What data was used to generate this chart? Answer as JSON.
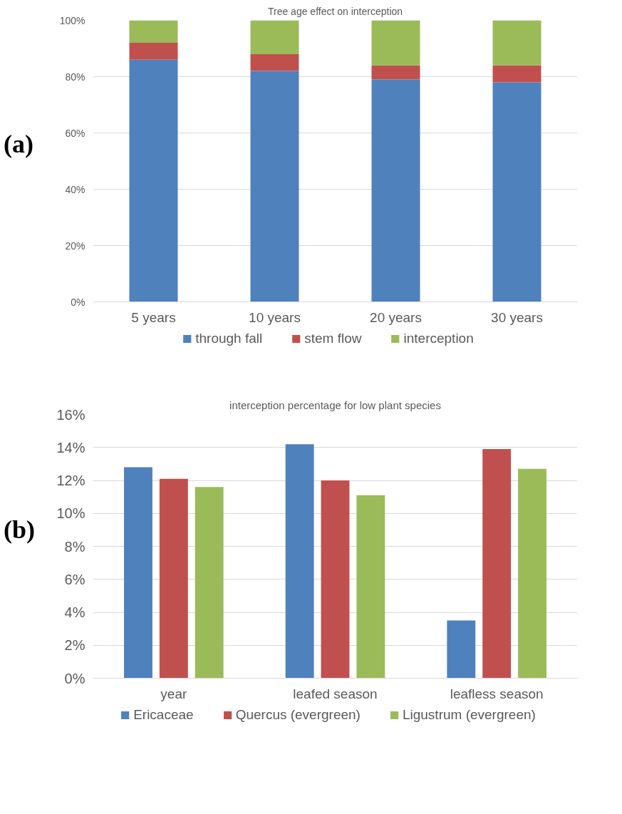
{
  "chart_data": [
    {
      "type": "bar",
      "stacked": true,
      "title": "Tree age effect on interception",
      "annotations": [
        "(a)"
      ],
      "categories": [
        "5 years",
        "10 years",
        "20 years",
        "30 years"
      ],
      "series": [
        {
          "name": "through fall",
          "color": "#4f81bd",
          "values": [
            86,
            82,
            79,
            78
          ]
        },
        {
          "name": "stem flow",
          "color": "#c0504d",
          "values": [
            6,
            6,
            5,
            6
          ]
        },
        {
          "name": "interception",
          "color": "#9bbb59",
          "values": [
            8,
            12,
            16,
            16
          ]
        }
      ],
      "ylim": [
        0,
        100
      ],
      "yticks": [
        {
          "value": 0,
          "label": "0%"
        },
        {
          "value": 20,
          "label": "20%"
        },
        {
          "value": 40,
          "label": "40%"
        },
        {
          "value": 60,
          "label": "60%"
        },
        {
          "value": 80,
          "label": "80%"
        },
        {
          "value": 100,
          "label": "100%"
        }
      ],
      "grid": "y",
      "legend": "bottom"
    },
    {
      "type": "bar",
      "title": "interception percentage for low plant species",
      "annotations": [
        "(b)"
      ],
      "categories": [
        "year",
        "leafed season",
        "leafless season"
      ],
      "series": [
        {
          "name": "Ericaceae",
          "color": "#4f81bd",
          "values": [
            12.8,
            14.2,
            3.5
          ]
        },
        {
          "name": "Quercus (evergreen)",
          "color": "#c0504d",
          "values": [
            12.1,
            12.0,
            13.9
          ]
        },
        {
          "name": "Ligustrum (evergreen)",
          "color": "#9bbb59",
          "values": [
            11.6,
            11.1,
            12.7
          ]
        }
      ],
      "ylim": [
        0,
        16
      ],
      "yticks": [
        {
          "value": 0,
          "label": "0%"
        },
        {
          "value": 2,
          "label": "2%"
        },
        {
          "value": 4,
          "label": "4%"
        },
        {
          "value": 6,
          "label": "6%"
        },
        {
          "value": 8,
          "label": "8%"
        },
        {
          "value": 10,
          "label": "10%"
        },
        {
          "value": 12,
          "label": "12%"
        },
        {
          "value": 14,
          "label": "14%"
        },
        {
          "value": 16,
          "label": "16%"
        }
      ],
      "grid": "y",
      "legend": "bottom"
    }
  ]
}
